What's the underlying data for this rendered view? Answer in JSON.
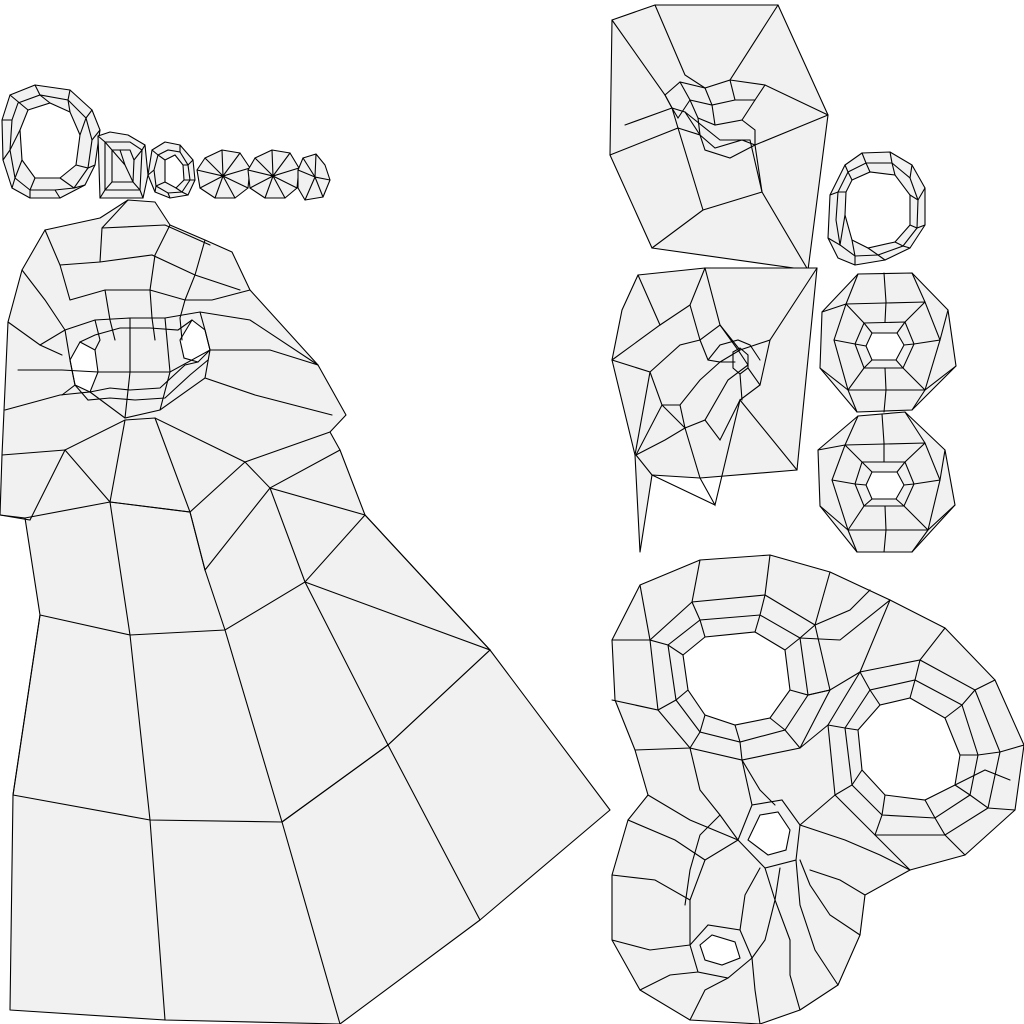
{
  "uv_layout": {
    "background": "#ffffff",
    "face_fill": "#f1f1f1",
    "edge_color": "#000000",
    "islands": [
      "head-island",
      "ring-island-top-left",
      "box-island",
      "small-ring-island",
      "fan-disc-island-1",
      "fan-disc-island-2",
      "fan-disc-island-3",
      "ear-island-top",
      "ear-island-bottom",
      "ring-island-right",
      "radial-disc-island-1",
      "radial-disc-island-2",
      "face-trefoil-island"
    ]
  }
}
